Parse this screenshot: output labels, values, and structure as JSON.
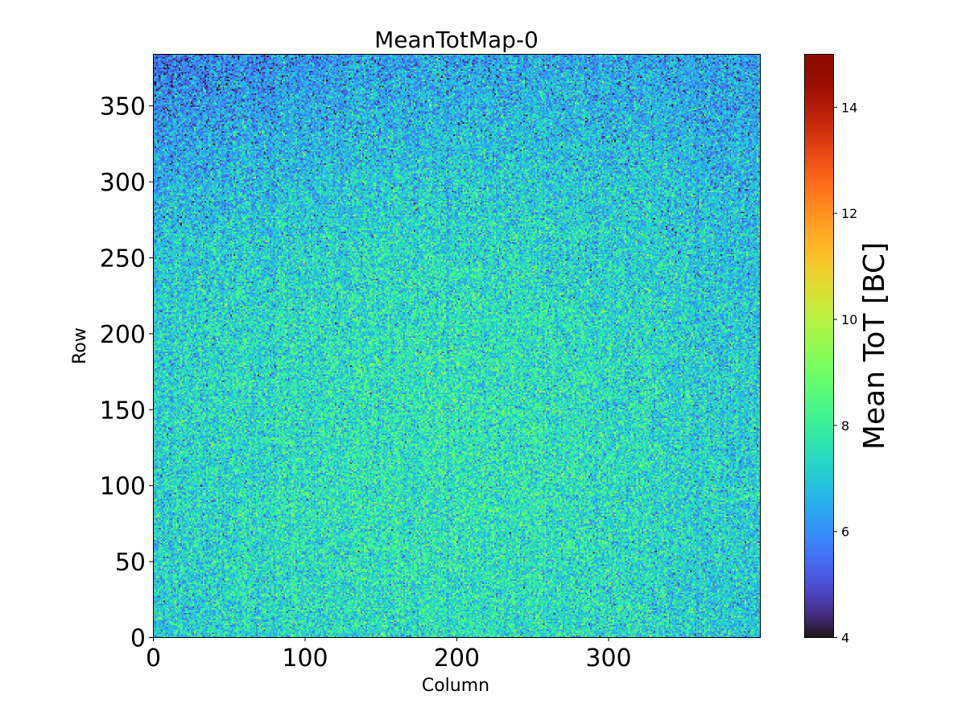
{
  "chart_data": {
    "type": "heatmap",
    "title": "MeanTotMap-0",
    "xlabel": "Column",
    "ylabel": "Row",
    "xlim": [
      0,
      400
    ],
    "ylim": [
      0,
      384
    ],
    "xticks": [
      0,
      100,
      200,
      300
    ],
    "yticks": [
      0,
      50,
      100,
      150,
      200,
      250,
      300,
      350
    ],
    "colormap": "turbo",
    "colorbar": {
      "label": "Mean ToT [BC]",
      "range": [
        4,
        15
      ],
      "ticks": [
        4,
        6,
        8,
        10,
        12,
        14
      ]
    },
    "grid": false,
    "values_summary": {
      "n_columns": 400,
      "n_rows": 384,
      "typical_mean": 7.0,
      "typical_std": 0.9
    }
  }
}
